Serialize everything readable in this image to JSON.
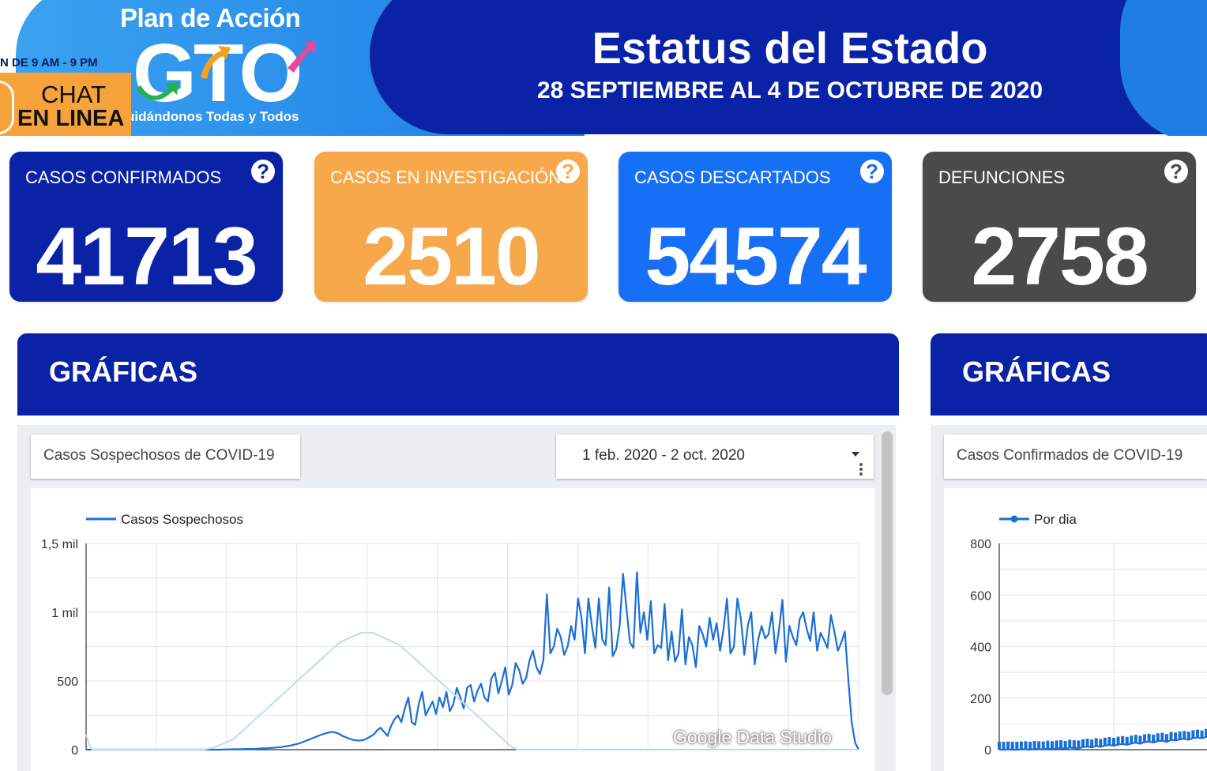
{
  "header": {
    "logo_plan": "Plan de Acción",
    "logo_gto": "GTO",
    "tagline": "uidándonos Todas y Todos",
    "hours": "N DE 9 AM - 9 PM",
    "chat_line1": "CHAT",
    "chat_line2": "EN LINEA",
    "title": "Estatus del Estado",
    "subtitle": "28 SEPTIEMBRE AL 4 DE OCTUBRE DE 2020"
  },
  "cards": {
    "confirmed": {
      "label": "CASOS CONFIRMADOS",
      "value": "41713",
      "help": "?"
    },
    "investigation": {
      "label": "CASOS EN INVESTIGACIÓN",
      "value": "2510",
      "help": "?"
    },
    "discarded": {
      "label": "CASOS DESCARTADOS",
      "value": "54574",
      "help": "?"
    },
    "deaths": {
      "label": "DEFUNCIONES",
      "value": "2758",
      "help": "?"
    }
  },
  "panels": {
    "left": {
      "title": "GRÁFICAS",
      "chart_title": "Casos Sospechosos de COVID-19",
      "date_range": "1 feb. 2020 - 2 oct. 2020"
    },
    "right": {
      "title": "GRÁFICAS",
      "chart_title": "Casos Confirmados de COVID-19"
    }
  },
  "watermark": "Google Data Studio",
  "colors": {
    "navy": "#0a23a6",
    "orange": "#f7a84a",
    "blue": "#1670f5",
    "gray": "#4a4a4a",
    "line": "#1a6fd6",
    "trend": "#bcdcf5"
  },
  "chart_data": [
    {
      "type": "line",
      "legend_position": "top-left",
      "grid": true,
      "ylim": [
        0,
        1500
      ],
      "y_ticks": [
        0,
        500,
        1000,
        1500
      ],
      "y_tick_labels": [
        "0",
        "500",
        "1 mil",
        "1,5 mil"
      ],
      "x_range": [
        "2020-02-01",
        "2020-10-02"
      ],
      "series": [
        {
          "name": "Casos Sospechosos",
          "values": [
            0,
            0,
            0,
            0,
            0,
            0,
            0,
            0,
            0,
            0,
            0,
            0,
            0,
            0,
            0,
            0,
            0,
            0,
            0,
            0,
            0,
            0,
            0,
            0,
            0,
            0,
            0,
            0,
            0,
            0,
            0,
            0,
            0,
            0,
            0,
            0,
            0,
            0,
            0,
            0,
            2,
            2,
            3,
            3,
            4,
            4,
            5,
            5,
            6,
            6,
            8,
            9,
            10,
            12,
            14,
            16,
            18,
            22,
            26,
            30,
            36,
            42,
            50,
            60,
            70,
            80,
            90,
            100,
            110,
            118,
            125,
            130,
            125,
            115,
            100,
            90,
            80,
            72,
            68,
            66,
            70,
            80,
            95,
            110,
            140,
            160,
            130,
            100,
            170,
            220,
            250,
            200,
            300,
            380,
            200,
            180,
            330,
            420,
            250,
            300,
            350,
            260,
            380,
            310,
            420,
            280,
            330,
            450,
            380,
            300,
            450,
            470,
            350,
            430,
            480,
            380,
            350,
            520,
            560,
            410,
            500,
            600,
            400,
            470,
            630,
            580,
            480,
            520,
            650,
            720,
            600,
            550,
            650,
            1130,
            700,
            750,
            880,
            820,
            690,
            750,
            900,
            800,
            1100,
            960,
            700,
            1100,
            900,
            740,
            1100,
            800,
            760,
            1180,
            680,
            730,
            900,
            1280,
            1020,
            780,
            740,
            1290,
            850,
            1000,
            800,
            1080,
            700,
            760,
            740,
            1060,
            650,
            860,
            640,
            700,
            1020,
            620,
            820,
            760,
            600,
            900,
            840,
            750,
            960,
            800,
            920,
            720,
            880,
            1100,
            700,
            750,
            1100,
            950,
            690,
            900,
            1000,
            620,
            800,
            900,
            810,
            840,
            1000,
            700,
            870,
            1090,
            640,
            900,
            820,
            760,
            950,
            1000,
            880,
            790,
            1000,
            720,
            850,
            800,
            740,
            980,
            860,
            720,
            780,
            860,
            520,
            200,
            50,
            0
          ]
        },
        {
          "name": "",
          "smoothed": true,
          "values": [
            110,
            40,
            0,
            0,
            0,
            0,
            0,
            0,
            0,
            0,
            0,
            0,
            0,
            0,
            0,
            0,
            0,
            0,
            0,
            0,
            0,
            0,
            0,
            0,
            0,
            0,
            0,
            0,
            0,
            0,
            0,
            0,
            0,
            0,
            0,
            0,
            0,
            0,
            0,
            0,
            5,
            10,
            15,
            20,
            30,
            40,
            50,
            60,
            70,
            80,
            100,
            120,
            140,
            160,
            180,
            200,
            220,
            240,
            260,
            280,
            300,
            320,
            340,
            360,
            380,
            400,
            420,
            440,
            460,
            480,
            500,
            520,
            540,
            560,
            580,
            600,
            620,
            640,
            660,
            680,
            700,
            720,
            740,
            760,
            780,
            790,
            800,
            810,
            820,
            830,
            840,
            850,
            850,
            850,
            850,
            850,
            840,
            830,
            820,
            810,
            800,
            790,
            780,
            770,
            760,
            740,
            720,
            700,
            680,
            660,
            640,
            620,
            600,
            580,
            560,
            540,
            520,
            500,
            480,
            460,
            440,
            420,
            400,
            380,
            360,
            340,
            320,
            300,
            280,
            260,
            240,
            220,
            200,
            180,
            160,
            140,
            120,
            100,
            80,
            60,
            40,
            20,
            10,
            0,
            0,
            0,
            0,
            0,
            0,
            0,
            0,
            0,
            0,
            0,
            0,
            0,
            0,
            0,
            0,
            0,
            0,
            0,
            0,
            0,
            0,
            0,
            0,
            0,
            0,
            0,
            0,
            0,
            0,
            0,
            0,
            0,
            0,
            0,
            0,
            0,
            0,
            0,
            0,
            0,
            0,
            0,
            0,
            0,
            0,
            0,
            0,
            0,
            0,
            0,
            0,
            0,
            0,
            0,
            0,
            0,
            0,
            0,
            0,
            0,
            0,
            0,
            0,
            0,
            0,
            0,
            0,
            0,
            0,
            0,
            0,
            0,
            0,
            0,
            0,
            0,
            0,
            0,
            0,
            0,
            0,
            0,
            0,
            0,
            0,
            0,
            0,
            0,
            0,
            0,
            0,
            0,
            0,
            0,
            0,
            0,
            0,
            0,
            0,
            0,
            0,
            0,
            0,
            0,
            0,
            0,
            0,
            0,
            0,
            0,
            0,
            0,
            0
          ]
        }
      ]
    },
    {
      "type": "line",
      "legend_position": "top-left",
      "grid": true,
      "ylim": [
        0,
        800
      ],
      "y_ticks": [
        0,
        200,
        400,
        600,
        800
      ],
      "y_tick_labels": [
        "0",
        "200",
        "400",
        "600",
        "800"
      ],
      "series": [
        {
          "name": "Por dia",
          "values": [
            0,
            0,
            1,
            0,
            0,
            1,
            2,
            0,
            3,
            2,
            1,
            4,
            2,
            5,
            6,
            3,
            8,
            6,
            5,
            10,
            12,
            9,
            14,
            11,
            16,
            18,
            15,
            20,
            22,
            19,
            24,
            27,
            23,
            29,
            31,
            28,
            33,
            35,
            30,
            38,
            36,
            40,
            42,
            39,
            45,
            47,
            44,
            50,
            52,
            48,
            55,
            53,
            58
          ]
        }
      ]
    }
  ]
}
